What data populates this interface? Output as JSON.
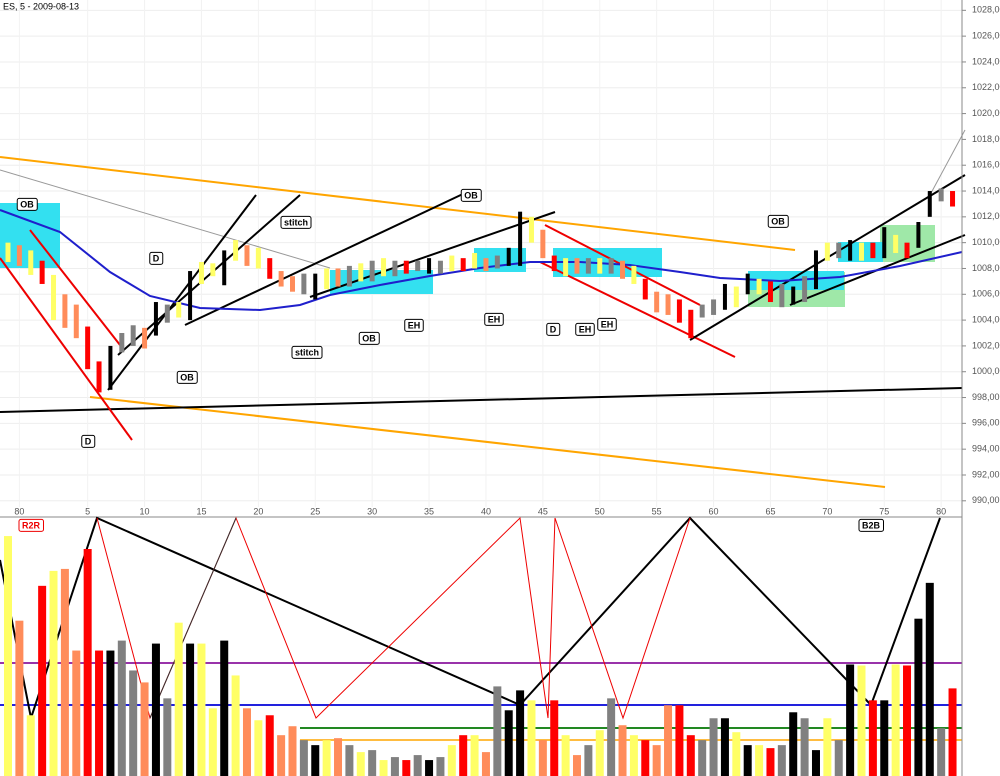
{
  "chart_data": {
    "type": "range-bar",
    "title": "ES, 5 - 2009-08-13",
    "categories": [
      null,
      "80",
      null,
      null,
      null,
      null,
      null,
      "5",
      null,
      null,
      null,
      null,
      "10",
      null,
      null,
      null,
      null,
      "15",
      null,
      null,
      null,
      null,
      "20",
      null,
      null,
      null,
      null,
      "25",
      null,
      null,
      null,
      null,
      "30",
      null,
      null,
      null,
      null,
      "35",
      null,
      null,
      null,
      null,
      "40",
      null,
      null,
      null,
      null,
      "45",
      null,
      null,
      null,
      null,
      "50",
      null,
      null,
      null,
      null,
      "55",
      null,
      null,
      null,
      null,
      "60",
      null,
      null,
      null,
      null,
      "65",
      null,
      null,
      null,
      null,
      "70",
      null,
      null,
      null,
      null,
      "75",
      null,
      null,
      null,
      null,
      "80",
      null
    ],
    "high": [
      1010.0,
      1009.8,
      1009.4,
      1008.6,
      1007.5,
      1006.0,
      1005.2,
      1003.5,
      1000.8,
      1002.0,
      1003.0,
      1003.6,
      1003.4,
      1005.4,
      1005.2,
      1005.4,
      1007.8,
      1008.5,
      1008.4,
      1009.4,
      1010.2,
      1009.8,
      1009.6,
      1008.8,
      1007.8,
      1007.4,
      1007.6,
      1007.6,
      1008.0,
      1008.0,
      1008.2,
      1008.4,
      1008.6,
      1008.8,
      1008.6,
      1008.6,
      1008.6,
      1008.8,
      1008.6,
      1009.0,
      1008.8,
      1009.2,
      1008.8,
      1009.0,
      1009.6,
      1012.4,
      1012.0,
      1011.0,
      1009.0,
      1008.8,
      1008.8,
      1008.8,
      1008.8,
      1008.8,
      1008.6,
      1008.2,
      1007.2,
      1006.2,
      1006.0,
      1005.6,
      1004.8,
      1005.2,
      1005.6,
      1006.8,
      1006.6,
      1007.6,
      1007.2,
      1007.0,
      1006.8,
      1006.6,
      1007.4,
      1009.4,
      1010.0,
      1010.0,
      1010.2,
      1010.0,
      1010.0,
      1011.2,
      1010.6,
      1010.0,
      1011.6,
      1014.0,
      1014.2,
      1014.0
    ],
    "low": [
      1008.5,
      1008.2,
      1007.5,
      1006.8,
      1004.0,
      1003.4,
      1002.6,
      1000.2,
      998.4,
      998.6,
      1001.5,
      1002.0,
      1001.8,
      1002.8,
      1003.8,
      1004.2,
      1004.0,
      1006.8,
      1007.4,
      1006.7,
      1008.6,
      1008.2,
      1008.0,
      1007.2,
      1006.6,
      1006.2,
      1006.0,
      1005.6,
      1006.4,
      1006.6,
      1006.6,
      1007.0,
      1007.0,
      1007.4,
      1007.4,
      1007.6,
      1007.8,
      1007.6,
      1007.6,
      1007.8,
      1007.8,
      1008.0,
      1007.8,
      1008.0,
      1008.2,
      1008.2,
      1010.0,
      1008.8,
      1007.8,
      1007.4,
      1007.6,
      1007.6,
      1007.6,
      1007.6,
      1007.2,
      1006.8,
      1005.6,
      1004.6,
      1004.4,
      1003.8,
      1002.6,
      1004.2,
      1004.4,
      1004.8,
      1005.0,
      1006.0,
      1006.0,
      1005.4,
      1005.0,
      1005.2,
      1005.4,
      1006.4,
      1008.6,
      1008.8,
      1008.6,
      1008.6,
      1008.8,
      1008.8,
      1009.2,
      1008.8,
      1009.6,
      1012.0,
      1013.2,
      1012.8
    ],
    "colors": [
      "#ffff66",
      "#ff8c5a",
      "#ffff66",
      "#ff0000",
      "#ffff66",
      "#ff8c5a",
      "#ff8c5a",
      "#ff0000",
      "#ff0000",
      "#000000",
      "#808080",
      "#808080",
      "#ff8c5a",
      "#000000",
      "#808080",
      "#ffff66",
      "#000000",
      "#ffff66",
      "#ffff66",
      "#000000",
      "#ffff66",
      "#ff8c5a",
      "#ffff66",
      "#ff0000",
      "#ff8c5a",
      "#ff8c5a",
      "#808080",
      "#000000",
      "#ffff66",
      "#ff8c5a",
      "#808080",
      "#ffff66",
      "#808080",
      "#ffff66",
      "#808080",
      "#ff0000",
      "#808080",
      "#000000",
      "#808080",
      "#ffff66",
      "#ff0000",
      "#ffff66",
      "#ff8c5a",
      "#808080",
      "#000000",
      "#000000",
      "#ffff66",
      "#ff8c5a",
      "#ff0000",
      "#ffff66",
      "#ff8c5a",
      "#808080",
      "#ffff66",
      "#808080",
      "#ff8c5a",
      "#ffff66",
      "#ff0000",
      "#ff8c5a",
      "#ff8c5a",
      "#ff0000",
      "#ff0000",
      "#808080",
      "#808080",
      "#000000",
      "#ffff66",
      "#000000",
      "#ffff66",
      "#ff0000",
      "#808080",
      "#000000",
      "#808080",
      "#000000",
      "#ffff66",
      "#808080",
      "#000000",
      "#ffff66",
      "#ff0000",
      "#000000",
      "#ffff66",
      "#ff0000",
      "#000000",
      "#000000",
      "#808080",
      "#ff0000"
    ],
    "volume": [
      241,
      156,
      61,
      191,
      206,
      208,
      126,
      228,
      126,
      126,
      136,
      106,
      94,
      133,
      78,
      154,
      133,
      133,
      68,
      136,
      101,
      68,
      56,
      61,
      41,
      50,
      36,
      31,
      36,
      38,
      31,
      24,
      26,
      16,
      19,
      16,
      21,
      16,
      19,
      31,
      41,
      41,
      24,
      90,
      66,
      86,
      76,
      36,
      76,
      41,
      21,
      31,
      46,
      78,
      51,
      41,
      36,
      31,
      71,
      71,
      41,
      36,
      58,
      58,
      44,
      31,
      31,
      28,
      31,
      64,
      58,
      26,
      58,
      36,
      112,
      111,
      76,
      76,
      112,
      111,
      158,
      194,
      48,
      88
    ],
    "ylim": [
      988.9,
      1028.8
    ],
    "yticks": [
      {
        "value": 990,
        "label": "990,00"
      },
      {
        "value": 992,
        "label": "992,00"
      },
      {
        "value": 994,
        "label": "994,00"
      },
      {
        "value": 996,
        "label": "996,00"
      },
      {
        "value": 998,
        "label": "998,00"
      },
      {
        "value": 1000,
        "label": "1000,00"
      },
      {
        "value": 1002,
        "label": "1002,00"
      },
      {
        "value": 1004,
        "label": "1004,00"
      },
      {
        "value": 1006,
        "label": "1006,00"
      },
      {
        "value": 1008,
        "label": "1008,00"
      },
      {
        "value": 1010,
        "label": "1010,00"
      },
      {
        "value": 1012,
        "label": "1012,00"
      },
      {
        "value": 1014,
        "label": "1014,00"
      },
      {
        "value": 1016,
        "label": "1016,00"
      },
      {
        "value": 1018,
        "label": "1018,00"
      },
      {
        "value": 1020,
        "label": "1020,00"
      },
      {
        "value": 1022,
        "label": "1022,00"
      },
      {
        "value": 1024,
        "label": "1024,00"
      },
      {
        "value": 1026,
        "label": "1026,00"
      },
      {
        "value": 1028,
        "label": "1028,00"
      }
    ],
    "grid": true,
    "annotations": [
      "OB",
      "D",
      "stitch",
      "OB",
      "OB",
      "stitch",
      "OB",
      "OB",
      "EH",
      "EH",
      "D",
      "EH",
      "EH",
      "D",
      "R2R",
      "B2B"
    ]
  }
}
